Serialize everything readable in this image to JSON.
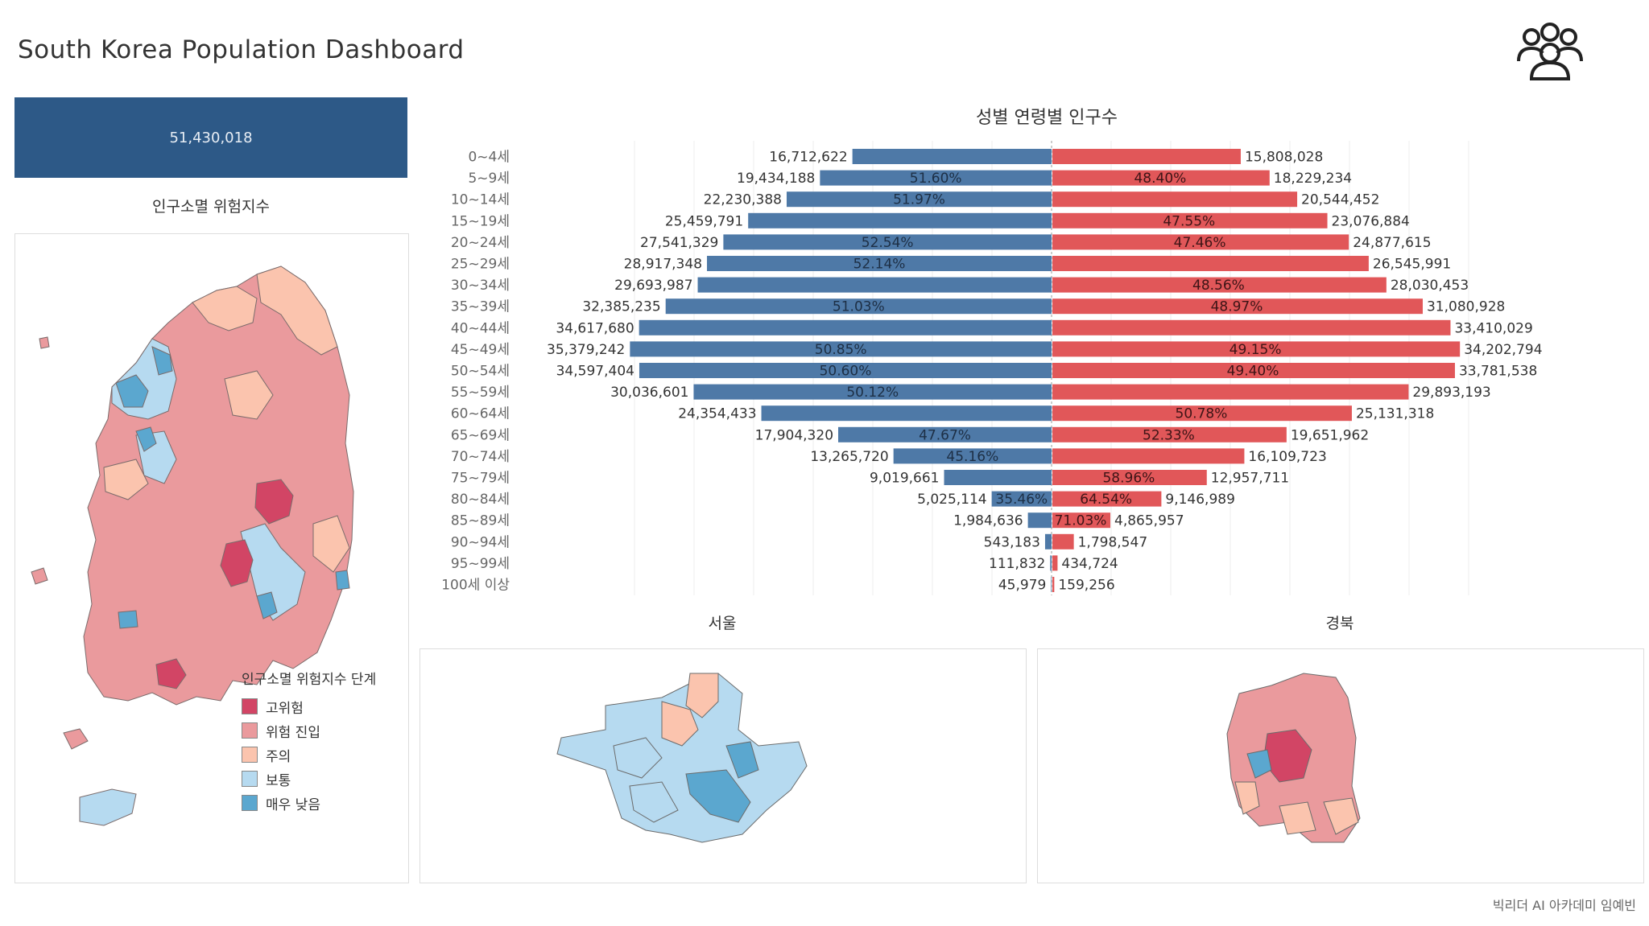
{
  "dashboard": {
    "title": "South Korea Population Dashboard",
    "total_population": "51,430,018",
    "risk_title": "인구소멸 위험지수",
    "seoul_title": "서울",
    "gyeongbuk_title": "경북",
    "credit": "빅리더 AI 아카데미 임예빈"
  },
  "legend": {
    "title": "인구소멸 위험지수 단계",
    "items": [
      {
        "label": "고위험",
        "color": "#d24565"
      },
      {
        "label": "위험 진입",
        "color": "#ea9a9d"
      },
      {
        "label": "주의",
        "color": "#fbc4ae"
      },
      {
        "label": "보통",
        "color": "#b6daf0"
      },
      {
        "label": "매우 낮음",
        "color": "#5ba7cf"
      }
    ]
  },
  "colors": {
    "male": "#4e79a7",
    "female": "#e15759",
    "header": "#2d5987"
  },
  "chart_data": {
    "type": "bar",
    "title": "성별 연령별 인구수",
    "orientation": "horizontal-diverging",
    "categories": [
      "0~4세",
      "5~9세",
      "10~14세",
      "15~19세",
      "20~24세",
      "25~29세",
      "30~34세",
      "35~39세",
      "40~44세",
      "45~49세",
      "50~54세",
      "55~59세",
      "60~64세",
      "65~69세",
      "70~74세",
      "75~79세",
      "80~84세",
      "85~89세",
      "90~94세",
      "95~99세",
      "100세 이상"
    ],
    "series": [
      {
        "values": [
          16712622,
          19434188,
          22230388,
          25459791,
          27541329,
          28917348,
          29693987,
          32385235,
          34617680,
          35379242,
          34597404,
          30036601,
          24354433,
          17904320,
          13265720,
          9019661,
          5025114,
          1984636,
          543183,
          111832,
          45979
        ],
        "labels": [
          "16,712,622",
          "19,434,188",
          "22,230,388",
          "25,459,791",
          "27,541,329",
          "28,917,348",
          "29,693,987",
          "32,385,235",
          "34,617,680",
          "35,379,242",
          "34,597,404",
          "30,036,601",
          "24,354,433",
          "17,904,320",
          "13,265,720",
          "9,019,661",
          "5,025,114",
          "1,984,636",
          "543,183",
          "111,832",
          "45,979"
        ],
        "share": [
          "",
          "51.60%",
          "51.97%",
          "",
          "52.54%",
          "52.14%",
          "",
          "51.03%",
          "",
          "50.85%",
          "50.60%",
          "50.12%",
          "",
          "47.67%",
          "45.16%",
          "",
          "35.46%",
          "",
          "",
          "",
          ""
        ]
      },
      {
        "values": [
          15808028,
          18229234,
          20544452,
          23076884,
          24877615,
          26545991,
          28030453,
          31080928,
          33410029,
          34202794,
          33781538,
          29893193,
          25131318,
          19651962,
          16109723,
          12957711,
          9146989,
          4865957,
          1798547,
          434724,
          159256
        ],
        "labels": [
          "15,808,028",
          "18,229,234",
          "20,544,452",
          "23,076,884",
          "24,877,615",
          "26,545,991",
          "28,030,453",
          "31,080,928",
          "33,410,029",
          "34,202,794",
          "33,781,538",
          "29,893,193",
          "25,131,318",
          "19,651,962",
          "16,109,723",
          "12,957,711",
          "9,146,989",
          "4,865,957",
          "1,798,547",
          "434,724",
          "159,256"
        ],
        "share": [
          "",
          "48.40%",
          "",
          "47.55%",
          "47.46%",
          "",
          "48.56%",
          "48.97%",
          "",
          "49.15%",
          "49.40%",
          "",
          "50.78%",
          "52.33%",
          "",
          "58.96%",
          "64.54%",
          "71.03%",
          "",
          "",
          ""
        ]
      }
    ]
  }
}
